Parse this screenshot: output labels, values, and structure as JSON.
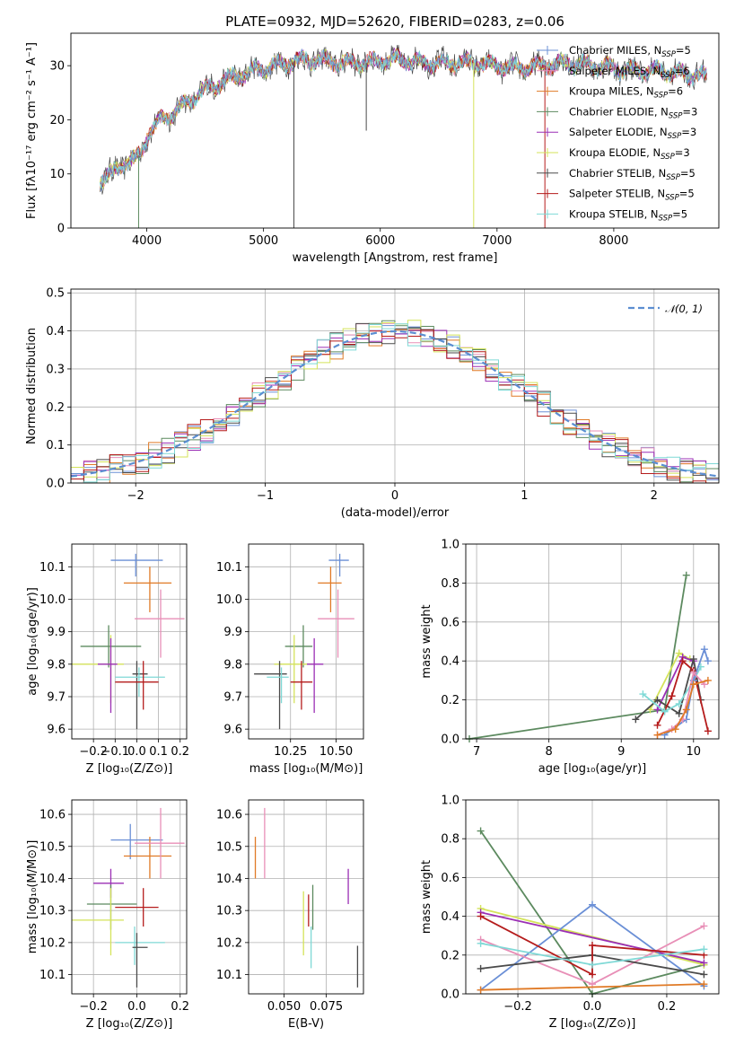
{
  "figure": {
    "title": "PLATE=0932, MJD=52620, FIBERID=0283, z=0.06"
  },
  "colors": {
    "Chabrier MILES": "#6a8fd6",
    "Salpeter MILES": "#e88fb7",
    "Kroupa MILES": "#e07a26",
    "Chabrier ELODIE": "#5c8a5f",
    "Salpeter ELODIE": "#9b2fb5",
    "Kroupa ELODIE": "#d4e35a",
    "Chabrier STELIB": "#4a4a4a",
    "Salpeter STELIB": "#b51c1c",
    "Kroupa STELIB": "#7fd9d6"
  },
  "chart_data": [
    {
      "id": "spectrum",
      "type": "line",
      "title": "PLATE=0932, MJD=52620, FIBERID=0283, z=0.06",
      "xlabel": "wavelength [Angstrom, rest frame]",
      "ylabel": "Flux [fλ10⁻¹⁷ erg cm⁻² s⁻¹ A⁻¹]",
      "xlim": [
        3350,
        8900
      ],
      "ylim": [
        0,
        36
      ],
      "xticks": [
        4000,
        5000,
        6000,
        7000,
        8000
      ],
      "yticks": [
        0,
        10,
        20,
        30
      ],
      "grid": false,
      "legend_position": "top-right",
      "legend": [
        "Chabrier MILES, N_SSP=5",
        "Salpeter MILES, N_SSP=6",
        "Kroupa MILES, N_SSP=6",
        "Chabrier ELODIE, N_SSP=3",
        "Salpeter ELODIE, N_SSP=3",
        "Kroupa ELODIE, N_SSP=3",
        "Chabrier STELIB, N_SSP=5",
        "Salpeter STELIB, N_SSP=5",
        "Kroupa STELIB, N_SSP=5"
      ],
      "continuum": {
        "x": [
          3600,
          3700,
          3800,
          3900,
          3950,
          4000,
          4100,
          4200,
          4300,
          4400,
          4500,
          4700,
          4900,
          5000,
          5200,
          5300,
          5500,
          5700,
          5900,
          6000,
          6200,
          6400,
          6600,
          6800,
          7000,
          7200,
          7400,
          7600,
          7800,
          8000,
          8200,
          8400,
          8600,
          8800
        ],
        "y": [
          9,
          10,
          12,
          12.5,
          14,
          17,
          19.5,
          21,
          22.5,
          24,
          25.5,
          27.5,
          29,
          29.5,
          30.5,
          31,
          31,
          30.5,
          30.5,
          31,
          31,
          30.5,
          30.5,
          30.5,
          30,
          29.5,
          30,
          30.5,
          30,
          29.5,
          29,
          29,
          28.5,
          28
        ]
      },
      "spikes": [
        {
          "x": 3930,
          "y_low": 0,
          "series": "Chabrier ELODIE"
        },
        {
          "x": 5260,
          "y_low": 0,
          "series": "Chabrier STELIB"
        },
        {
          "x": 5880,
          "y_low": 18,
          "series": "Chabrier STELIB"
        },
        {
          "x": 6800,
          "y_low": 0,
          "series": "Kroupa ELODIE"
        },
        {
          "x": 7410,
          "y_low": 0,
          "series": "Salpeter STELIB"
        }
      ]
    },
    {
      "id": "residuals",
      "type": "line",
      "xlabel": "(data-model)/error",
      "ylabel": "Normed distribution",
      "xlim": [
        -2.5,
        2.5
      ],
      "ylim": [
        0,
        0.51
      ],
      "xticks": [
        -2,
        -1,
        0,
        1,
        2
      ],
      "xticklabels": [
        "−2",
        "−1",
        "0",
        "1",
        "2"
      ],
      "yticks": [
        0.0,
        0.1,
        0.2,
        0.3,
        0.4,
        0.5
      ],
      "grid": true,
      "legend_position": "top-right",
      "legend": [
        "𝒩(0, 1)"
      ],
      "bin_width": 0.1,
      "gaussian": {
        "name": "𝒩(0, 1)",
        "mean": 0,
        "sigma": 1
      }
    },
    {
      "id": "age-vs-Z",
      "type": "scatter",
      "xlabel": "Z [log₁₀(Z/Z⊙)]",
      "ylabel": "age  [log₁₀(age/yr)]",
      "xlim": [
        -0.3,
        0.23
      ],
      "ylim": [
        9.57,
        10.17
      ],
      "xticks": [
        -0.2,
        -0.1,
        0.0,
        0.1,
        0.2
      ],
      "xticklabels": [
        "−0.2",
        "−0.1",
        "0.0",
        "0.1",
        "0.2"
      ],
      "yticks": [
        9.6,
        9.7,
        9.8,
        9.9,
        10.0,
        10.1
      ],
      "grid": true,
      "points": [
        {
          "series": "Chabrier MILES",
          "x": -0.005,
          "y": 10.12,
          "ex": [
            -0.12,
            0.12
          ],
          "ey": [
            10.07,
            10.14
          ]
        },
        {
          "series": "Kroupa MILES",
          "x": 0.06,
          "y": 10.05,
          "ex": [
            -0.06,
            0.16
          ],
          "ey": [
            9.96,
            10.1
          ]
        },
        {
          "series": "Salpeter MILES",
          "x": 0.11,
          "y": 9.94,
          "ex": [
            -0.01,
            0.22
          ],
          "ey": [
            9.82,
            10.03
          ]
        },
        {
          "series": "Chabrier ELODIE",
          "x": -0.13,
          "y": 9.855,
          "ex": [
            -0.26,
            0.02
          ],
          "ey": [
            9.79,
            9.92
          ]
        },
        {
          "series": "Kroupa ELODIE",
          "x": -0.12,
          "y": 9.8,
          "ex": [
            -0.3,
            -0.06
          ],
          "ey": [
            9.68,
            9.89
          ]
        },
        {
          "series": "Salpeter ELODIE",
          "x": -0.12,
          "y": 9.8,
          "ex": [
            -0.18,
            -0.09
          ],
          "ey": [
            9.65,
            9.88
          ]
        },
        {
          "series": "Chabrier STELIB",
          "x": 0.0,
          "y": 9.77,
          "ex": [
            -0.02,
            0.05
          ],
          "ey": [
            9.6,
            9.81
          ]
        },
        {
          "series": "Kroupa STELIB",
          "x": 0.01,
          "y": 9.76,
          "ex": [
            -0.1,
            0.13
          ],
          "ey": [
            9.7,
            9.79
          ]
        },
        {
          "series": "Salpeter STELIB",
          "x": 0.03,
          "y": 9.745,
          "ex": [
            -0.1,
            0.1
          ],
          "ey": [
            9.66,
            9.81
          ]
        }
      ]
    },
    {
      "id": "age-vs-mass",
      "type": "scatter",
      "xlabel": "mass [log₁₀(M/M⊙)]",
      "ylabel": "",
      "xlim": [
        10.02,
        10.65
      ],
      "ylim": [
        9.57,
        10.17
      ],
      "xticks": [
        10.25,
        10.5
      ],
      "xticklabels": [
        "10.25",
        "10.50"
      ],
      "yticks": [
        9.6,
        9.7,
        9.8,
        9.9,
        10.0,
        10.1
      ],
      "grid": true,
      "points": [
        {
          "series": "Chabrier MILES",
          "x": 10.52,
          "y": 10.12,
          "ex": [
            10.46,
            10.57
          ],
          "ey": [
            10.07,
            10.14
          ]
        },
        {
          "series": "Kroupa MILES",
          "x": 10.47,
          "y": 10.05,
          "ex": [
            10.4,
            10.53
          ],
          "ey": [
            9.96,
            10.1
          ]
        },
        {
          "series": "Salpeter MILES",
          "x": 10.51,
          "y": 9.94,
          "ex": [
            10.4,
            10.6
          ],
          "ey": [
            9.82,
            10.03
          ]
        },
        {
          "series": "Chabrier ELODIE",
          "x": 10.32,
          "y": 9.855,
          "ex": [
            10.22,
            10.37
          ],
          "ey": [
            9.79,
            9.92
          ]
        },
        {
          "series": "Kroupa ELODIE",
          "x": 10.27,
          "y": 9.8,
          "ex": [
            10.16,
            10.37
          ],
          "ey": [
            9.68,
            9.89
          ]
        },
        {
          "series": "Salpeter ELODIE",
          "x": 10.38,
          "y": 9.8,
          "ex": [
            10.34,
            10.43
          ],
          "ey": [
            9.65,
            9.88
          ]
        },
        {
          "series": "Chabrier STELIB",
          "x": 10.19,
          "y": 9.77,
          "ex": [
            10.05,
            10.23
          ],
          "ey": [
            9.6,
            9.81
          ]
        },
        {
          "series": "Kroupa STELIB",
          "x": 10.2,
          "y": 9.76,
          "ex": [
            10.12,
            10.24
          ],
          "ey": [
            9.68,
            9.79
          ]
        },
        {
          "series": "Salpeter STELIB",
          "x": 10.31,
          "y": 9.745,
          "ex": [
            10.25,
            10.37
          ],
          "ey": [
            9.66,
            9.81
          ]
        }
      ]
    },
    {
      "id": "weight-vs-age",
      "type": "line",
      "xlabel": "age  [log₁₀(age/yr)]",
      "ylabel": "mass weight",
      "xlim": [
        6.85,
        10.35
      ],
      "ylim": [
        0,
        1
      ],
      "xticks": [
        7,
        8,
        9,
        10
      ],
      "yticks": [
        0.0,
        0.2,
        0.4,
        0.6,
        0.8,
        1.0
      ],
      "grid": true,
      "series": [
        {
          "series": "Chabrier ELODIE",
          "x": [
            6.9,
            9.6,
            9.9
          ],
          "y": [
            0.0,
            0.15,
            0.84
          ]
        },
        {
          "series": "Kroupa ELODIE",
          "x": [
            9.4,
            9.8,
            9.95
          ],
          "y": [
            0.15,
            0.44,
            0.41
          ]
        },
        {
          "series": "Salpeter ELODIE",
          "x": [
            9.5,
            9.85,
            10.0
          ],
          "y": [
            0.15,
            0.42,
            0.4
          ]
        },
        {
          "series": "Chabrier STELIB",
          "x": [
            9.2,
            9.5,
            9.8,
            10.0,
            10.1
          ],
          "y": [
            0.1,
            0.2,
            0.13,
            0.41,
            0.2
          ]
        },
        {
          "series": "Salpeter STELIB",
          "x": [
            9.5,
            9.7,
            9.85,
            10.0,
            10.2
          ],
          "y": [
            0.07,
            0.22,
            0.4,
            0.35,
            0.04
          ]
        },
        {
          "series": "Kroupa STELIB",
          "x": [
            9.3,
            9.6,
            9.8,
            10.0,
            10.1
          ],
          "y": [
            0.23,
            0.14,
            0.18,
            0.3,
            0.37
          ]
        },
        {
          "series": "Chabrier MILES",
          "x": [
            9.6,
            9.9,
            10.0,
            10.15,
            10.2
          ],
          "y": [
            0.02,
            0.1,
            0.3,
            0.46,
            0.4
          ]
        },
        {
          "series": "Salpeter MILES",
          "x": [
            9.5,
            9.7,
            9.85,
            10.0,
            10.15
          ],
          "y": [
            0.02,
            0.05,
            0.1,
            0.34,
            0.28
          ]
        },
        {
          "series": "Kroupa MILES",
          "x": [
            9.5,
            9.75,
            9.9,
            10.0,
            10.2
          ],
          "y": [
            0.02,
            0.05,
            0.15,
            0.28,
            0.3
          ]
        }
      ]
    },
    {
      "id": "mass-vs-Z",
      "type": "scatter",
      "xlabel": "Z [log₁₀(Z/Z⊙)]",
      "ylabel": "mass [log₁₀(M/M⊙)]",
      "xlim": [
        -0.3,
        0.23
      ],
      "ylim": [
        10.04,
        10.645
      ],
      "xticks": [
        -0.2,
        0.0,
        0.2
      ],
      "xticklabels": [
        "−0.2",
        "0.0",
        "0.2"
      ],
      "yticks": [
        10.1,
        10.2,
        10.3,
        10.4,
        10.5,
        10.6
      ],
      "grid": true,
      "points": [
        {
          "series": "Chabrier MILES",
          "x": -0.03,
          "y": 10.52,
          "ex": [
            -0.12,
            0.12
          ],
          "ey": [
            10.46,
            10.57
          ]
        },
        {
          "series": "Kroupa MILES",
          "x": 0.06,
          "y": 10.47,
          "ex": [
            -0.06,
            0.16
          ],
          "ey": [
            10.4,
            10.53
          ]
        },
        {
          "series": "Salpeter MILES",
          "x": 0.11,
          "y": 10.51,
          "ex": [
            -0.01,
            0.22
          ],
          "ey": [
            10.4,
            10.62
          ]
        },
        {
          "series": "Salpeter ELODIE",
          "x": -0.12,
          "y": 10.385,
          "ex": [
            -0.2,
            -0.06
          ],
          "ey": [
            10.34,
            10.43
          ]
        },
        {
          "series": "Chabrier ELODIE",
          "x": -0.12,
          "y": 10.32,
          "ex": [
            -0.23,
            0.0
          ],
          "ey": [
            10.24,
            10.38
          ]
        },
        {
          "series": "Kroupa ELODIE",
          "x": -0.12,
          "y": 10.27,
          "ex": [
            -0.3,
            -0.06
          ],
          "ey": [
            10.16,
            10.37
          ]
        },
        {
          "series": "Salpeter STELIB",
          "x": 0.03,
          "y": 10.31,
          "ex": [
            -0.1,
            0.1
          ],
          "ey": [
            10.25,
            10.37
          ]
        },
        {
          "series": "Kroupa STELIB",
          "x": -0.01,
          "y": 10.2,
          "ex": [
            -0.1,
            0.13
          ],
          "ey": [
            10.13,
            10.25
          ]
        },
        {
          "series": "Chabrier STELIB",
          "x": 0.0,
          "y": 10.185,
          "ex": [
            -0.02,
            0.05
          ],
          "ey": [
            10.06,
            10.23
          ]
        }
      ]
    },
    {
      "id": "mass-vs-EBV",
      "type": "scatter",
      "xlabel": "E(B-V)",
      "ylabel": "",
      "xlim": [
        0.029,
        0.097
      ],
      "ylim": [
        10.04,
        10.645
      ],
      "xticks": [
        0.05,
        0.075
      ],
      "xticklabels": [
        "0.050",
        "0.075"
      ],
      "yticks": [
        10.1,
        10.2,
        10.3,
        10.4,
        10.5,
        10.6
      ],
      "grid": true,
      "points": [
        {
          "series": "Kroupa MILES",
          "x": 0.033,
          "ey": [
            10.4,
            10.53
          ]
        },
        {
          "series": "Salpeter MILES",
          "x": 0.0385,
          "ey": [
            10.4,
            10.62
          ]
        },
        {
          "series": "Kroupa ELODIE",
          "x": 0.0615,
          "ey": [
            10.16,
            10.36
          ]
        },
        {
          "series": "Salpeter STELIB",
          "x": 0.0645,
          "ey": [
            10.25,
            10.35
          ]
        },
        {
          "series": "Chabrier ELODIE",
          "x": 0.067,
          "ey": [
            10.24,
            10.38
          ]
        },
        {
          "series": "Kroupa STELIB",
          "x": 0.066,
          "ey": [
            10.12,
            10.25
          ]
        },
        {
          "series": "Salpeter ELODIE",
          "x": 0.088,
          "ey": [
            10.32,
            10.43
          ]
        },
        {
          "series": "Chabrier STELIB",
          "x": 0.0935,
          "ey": [
            10.06,
            10.19
          ]
        }
      ]
    },
    {
      "id": "weight-vs-Z",
      "type": "line",
      "xlabel": "Z [log₁₀(Z/Z⊙)]",
      "ylabel": "mass weight",
      "xlim": [
        -0.34,
        0.34
      ],
      "ylim": [
        0,
        1
      ],
      "xticks": [
        -0.2,
        0.0,
        0.2
      ],
      "xticklabels": [
        "−0.2",
        "0.0",
        "0.2"
      ],
      "yticks": [
        0.0,
        0.2,
        0.4,
        0.6,
        0.8,
        1.0
      ],
      "grid": true,
      "series": [
        {
          "series": "Chabrier ELODIE",
          "x": [
            -0.3,
            0.0,
            0.3
          ],
          "y": [
            0.84,
            0.0,
            0.15
          ]
        },
        {
          "series": "Kroupa ELODIE",
          "x": [
            -0.3,
            0.3
          ],
          "y": [
            0.44,
            0.15
          ]
        },
        {
          "series": "Salpeter ELODIE",
          "x": [
            -0.3,
            0.3
          ],
          "y": [
            0.42,
            0.16
          ]
        },
        {
          "series": "Chabrier MILES",
          "x": [
            -0.3,
            0.0,
            0.3
          ],
          "y": [
            0.02,
            0.46,
            0.04
          ]
        },
        {
          "series": "Salpeter MILES",
          "x": [
            -0.3,
            0.0,
            0.3
          ],
          "y": [
            0.28,
            0.05,
            0.35
          ]
        },
        {
          "series": "Kroupa MILES",
          "x": [
            -0.3,
            0.3
          ],
          "y": [
            0.02,
            0.05
          ]
        },
        {
          "series": "Chabrier STELIB",
          "x": [
            -0.3,
            0.0,
            0.3
          ],
          "y": [
            0.13,
            0.2,
            0.1
          ]
        },
        {
          "series": "Salpeter STELIB",
          "x": [
            -0.3,
            0.0,
            0.0,
            0.3
          ],
          "y": [
            0.4,
            0.1,
            0.25,
            0.2
          ]
        },
        {
          "series": "Kroupa STELIB",
          "x": [
            -0.3,
            0.0,
            0.3
          ],
          "y": [
            0.26,
            0.15,
            0.23
          ]
        }
      ]
    }
  ]
}
